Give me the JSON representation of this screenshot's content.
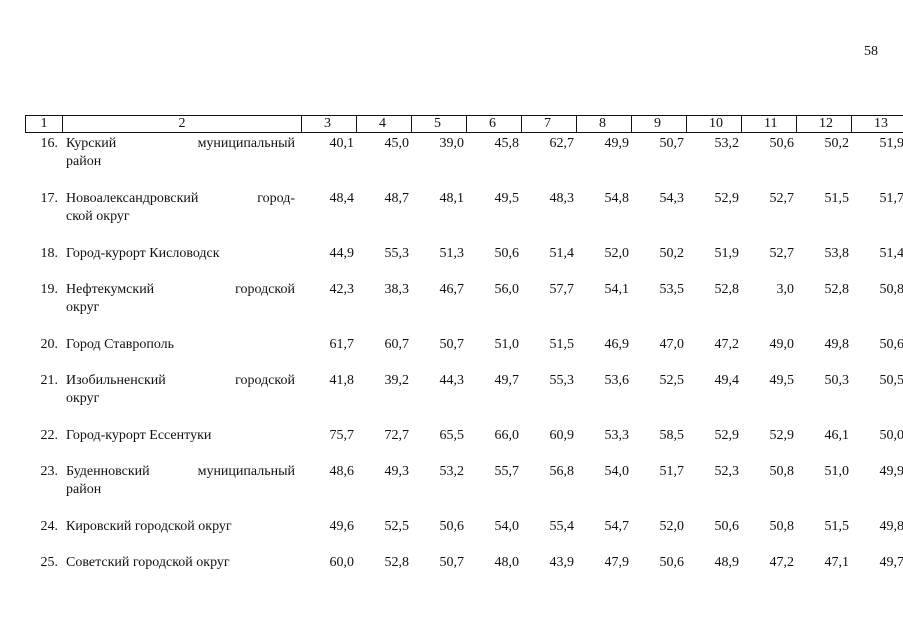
{
  "page": {
    "number": "58"
  },
  "table": {
    "header": [
      "1",
      "2",
      "3",
      "4",
      "5",
      "6",
      "7",
      "8",
      "9",
      "10",
      "11",
      "12",
      "13"
    ],
    "rows": [
      {
        "num": "16.",
        "name_line1": "Курский муниципальный",
        "name_line2": "район",
        "values": [
          "40,1",
          "45,0",
          "39,0",
          "45,8",
          "62,7",
          "49,9",
          "50,7",
          "53,2",
          "50,6",
          "50,2",
          "51,9"
        ]
      },
      {
        "num": "17.",
        "name_line1": "Новоалександровский город-",
        "name_line2": "ской округ",
        "values": [
          "48,4",
          "48,7",
          "48,1",
          "49,5",
          "48,3",
          "54,8",
          "54,3",
          "52,9",
          "52,7",
          "51,5",
          "51,7"
        ]
      },
      {
        "num": "18.",
        "name_line1": "Город-курорт Кисловодск",
        "name_line2": "",
        "values": [
          "44,9",
          "55,3",
          "51,3",
          "50,6",
          "51,4",
          "52,0",
          "50,2",
          "51,9",
          "52,7",
          "53,8",
          "51,4"
        ]
      },
      {
        "num": "19.",
        "name_line1": "Нефтекумский городской",
        "name_line2": "округ",
        "values": [
          "42,3",
          "38,3",
          "46,7",
          "56,0",
          "57,7",
          "54,1",
          "53,5",
          "52,8",
          "3,0",
          "52,8",
          "50,8"
        ]
      },
      {
        "num": "20.",
        "name_line1": "Город Ставрополь",
        "name_line2": "",
        "values": [
          "61,7",
          "60,7",
          "50,7",
          "51,0",
          "51,5",
          "46,9",
          "47,0",
          "47,2",
          "49,0",
          "49,8",
          "50,6"
        ]
      },
      {
        "num": "21.",
        "name_line1": "Изобильненский городской",
        "name_line2": "округ",
        "values": [
          "41,8",
          "39,2",
          "44,3",
          "49,7",
          "55,3",
          "53,6",
          "52,5",
          "49,4",
          "49,5",
          "50,3",
          "50,5"
        ]
      },
      {
        "num": "22.",
        "name_line1": "Город-курорт Ессентуки",
        "name_line2": "",
        "values": [
          "75,7",
          "72,7",
          "65,5",
          "66,0",
          "60,9",
          "53,3",
          "58,5",
          "52,9",
          "52,9",
          "46,1",
          "50,0"
        ]
      },
      {
        "num": "23.",
        "name_line1": "Буденновский муниципальный",
        "name_line2": "район",
        "values": [
          "48,6",
          "49,3",
          "53,2",
          "55,7",
          "56,8",
          "54,0",
          "51,7",
          "52,3",
          "50,8",
          "51,0",
          "49,9"
        ]
      },
      {
        "num": "24.",
        "name_line1": "Кировский городской округ",
        "name_line2": "",
        "values": [
          "49,6",
          "52,5",
          "50,6",
          "54,0",
          "55,4",
          "54,7",
          "52,0",
          "50,6",
          "50,8",
          "51,5",
          "49,8"
        ]
      },
      {
        "num": "25.",
        "name_line1": "Советский городской округ",
        "name_line2": "",
        "values": [
          "60,0",
          "52,8",
          "50,7",
          "48,0",
          "43,9",
          "47,9",
          "50,6",
          "48,9",
          "47,2",
          "47,1",
          "49,7"
        ]
      }
    ]
  }
}
